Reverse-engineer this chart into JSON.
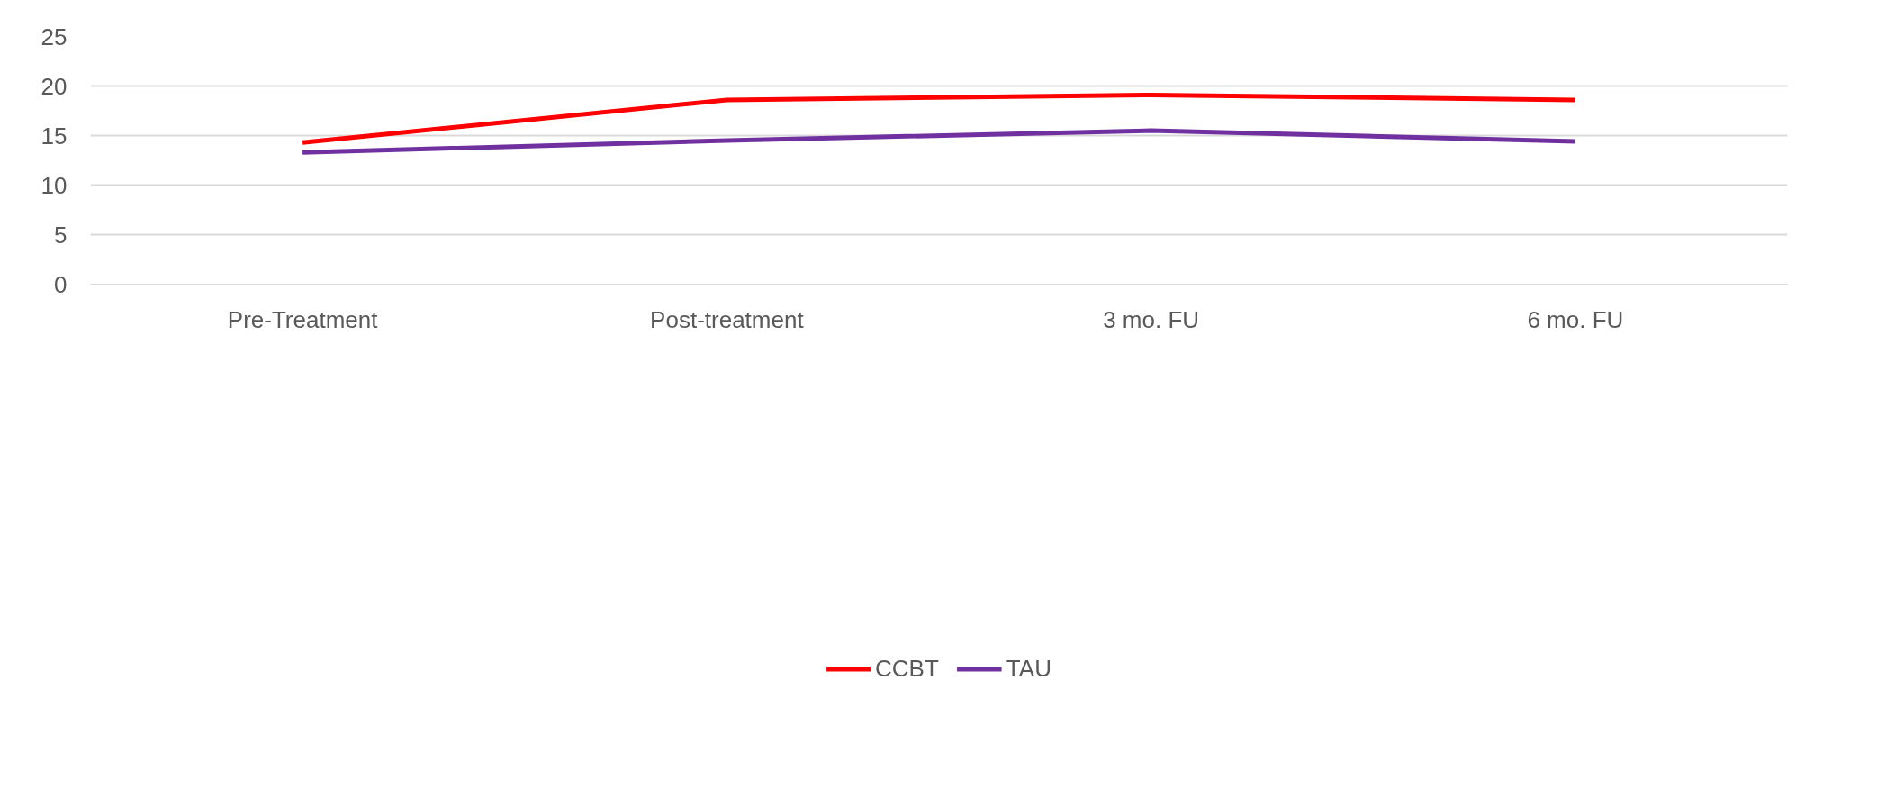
{
  "chart_data": {
    "type": "line",
    "categories": [
      "Pre-Treatment",
      "Post-treatment",
      "3 mo. FU",
      "6 mo. FU"
    ],
    "series": [
      {
        "name": "CCBT",
        "color": "#ff0000",
        "values": [
          14.3,
          18.6,
          19.1,
          18.6
        ]
      },
      {
        "name": "TAU",
        "color": "#7030a0",
        "values": [
          13.3,
          14.5,
          15.5,
          14.4
        ]
      }
    ],
    "ylim": [
      0,
      25
    ],
    "yticks": [
      0,
      5,
      10,
      15,
      20,
      25
    ],
    "grid": "y",
    "legend": "bottom",
    "line_style": "solid"
  }
}
